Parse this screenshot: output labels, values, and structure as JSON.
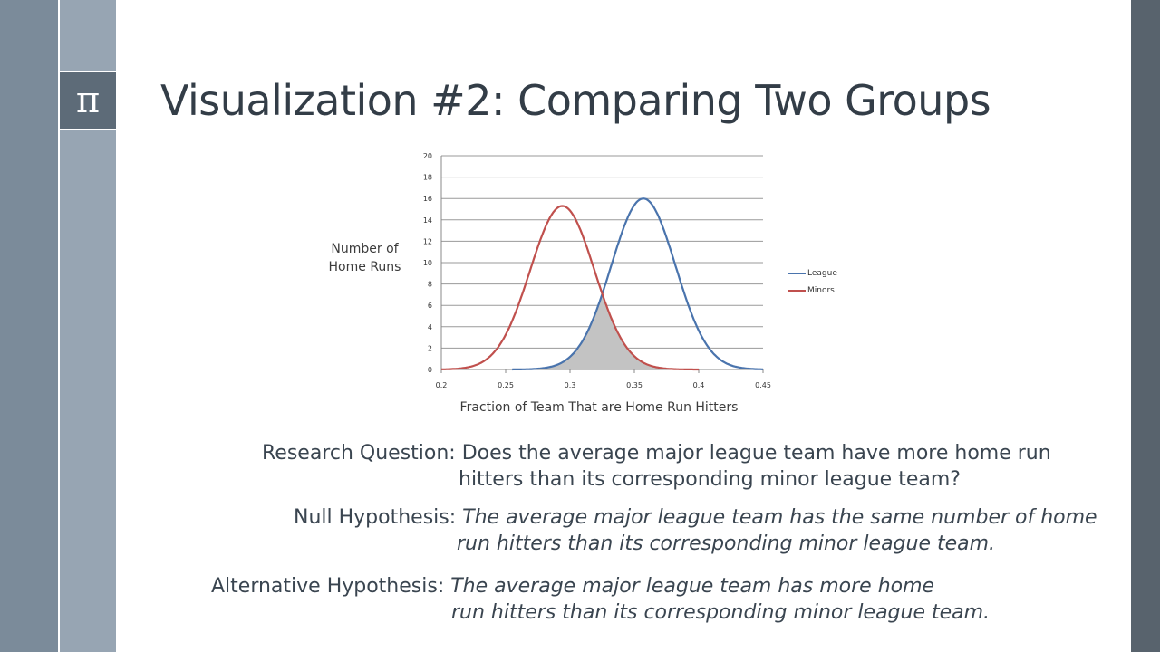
{
  "slide": {
    "title": "Visualization #2: Comparing Two Groups",
    "logo_symbol": "π",
    "logo_icon": "pi-icon"
  },
  "chart_data": {
    "type": "line",
    "title": "",
    "xlabel": "Fraction of Team That are Home Run Hitters",
    "ylabel": "Number of Home Runs",
    "xlim": [
      0.2,
      0.45
    ],
    "ylim": [
      0,
      20
    ],
    "x_ticks": [
      "0.2",
      "0.25",
      "0.3",
      "0.35",
      "0.4",
      "0.45"
    ],
    "y_ticks": [
      "0",
      "2",
      "4",
      "6",
      "8",
      "10",
      "12",
      "14",
      "16",
      "18",
      "20"
    ],
    "grid": true,
    "legend_position": "right",
    "series": [
      {
        "name": "League",
        "color": "#4a74ad",
        "distribution": "normal",
        "mean": 0.357,
        "sd": 0.025,
        "peak": 16.0,
        "range": [
          0.255,
          0.45
        ]
      },
      {
        "name": "Minors",
        "color": "#c0504d",
        "distribution": "normal",
        "mean": 0.294,
        "sd": 0.025,
        "peak": 15.3,
        "range": [
          0.2,
          0.4
        ]
      }
    ],
    "shaded_overlap": {
      "color": "#c3c3c3",
      "description": "area under both curves between the distributions"
    },
    "intersection": {
      "x": 0.325,
      "y": 7.4
    }
  },
  "legend": {
    "items": [
      {
        "label": "League",
        "color": "#4a74ad"
      },
      {
        "label": "Minors",
        "color": "#c0504d"
      }
    ]
  },
  "text": {
    "rq_label": "Research Question: ",
    "rq_line1": "Does the average major league team have more home run",
    "rq_line2": "hitters than its corresponding minor league team?",
    "null_label": "Null Hypothesis: ",
    "null_line1": "The average major league team has the same number of home",
    "null_line2": "run hitters than its corresponding minor league team.",
    "alt_label": "Alternative Hypothesis: ",
    "alt_line1": "The average major league team has more home",
    "alt_line2": "run hitters than its corresponding minor league team."
  }
}
